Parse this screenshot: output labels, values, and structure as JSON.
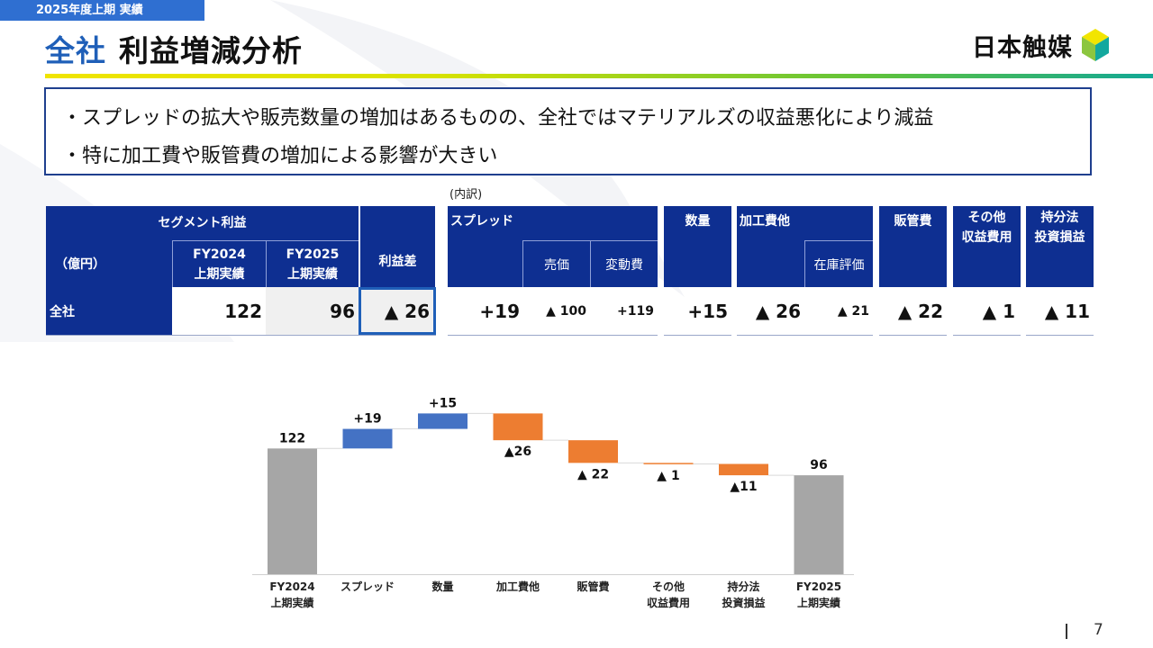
{
  "header": {
    "period_tag": "2025年度上期 実績",
    "title_accent": "全社",
    "title_main": "利益増減分析",
    "logo_text": "日本触媒"
  },
  "summary": {
    "lines": [
      "・スプレッドの拡大や販売数量の増加はあるものの、全社ではマテリアルズの収益悪化により減益",
      "・特に加工費や販管費の増加による影響が大きい"
    ]
  },
  "table": {
    "breakdown_label": "(内訳)",
    "segment_header": "セグメント利益",
    "unit_label": "（億円）",
    "fy2024_line1": "FY2024",
    "fy2024_line2": "上期実績",
    "fy2025_line1": "FY2025",
    "fy2025_line2": "上期実績",
    "diff_header": "利益差",
    "spread_header": "スプレッド",
    "spread_sub1": "売価",
    "spread_sub2": "変動費",
    "volume_header": "数量",
    "processing_header": "加工費他",
    "processing_sub": "在庫評価",
    "sga_header": "販管費",
    "other_line1": "その他",
    "other_line2": "収益費用",
    "equity_line1": "持分法",
    "equity_line2": "投資損益",
    "row": {
      "label": "全社",
      "fy2024": "122",
      "fy2025": "96",
      "diff": "▲ 26",
      "spread": "+19",
      "price": "▲ 100",
      "variable_cost": "+119",
      "volume": "+15",
      "processing": "▲ 26",
      "inventory": "▲ 21",
      "sga": "▲ 22",
      "other": "▲ 1",
      "equity": "▲ 11"
    }
  },
  "chart_data": {
    "type": "bar",
    "subtype": "waterfall",
    "categories": [
      [
        "FY2024",
        "上期実績"
      ],
      [
        "スプレッド"
      ],
      [
        "数量"
      ],
      [
        "加工費他"
      ],
      [
        "販管費"
      ],
      [
        "その他",
        "収益費用"
      ],
      [
        "持分法",
        "投資損益"
      ],
      [
        "FY2025",
        "上期実績"
      ]
    ],
    "values": [
      122,
      19,
      15,
      -26,
      -22,
      -1,
      -11,
      96
    ],
    "kinds": [
      "total",
      "delta",
      "delta",
      "delta",
      "delta",
      "delta",
      "delta",
      "total"
    ],
    "data_labels": [
      "122",
      "+19",
      "+15",
      "▲26",
      "▲ 22",
      "▲ 1",
      "▲11",
      "96"
    ],
    "colors": {
      "total": "#a6a6a6",
      "increase": "#4472c4",
      "decrease": "#ed7d31"
    },
    "ylim": [
      0,
      160
    ],
    "title": "",
    "xlabel": "",
    "ylabel": ""
  },
  "footer": {
    "page_number": "7"
  }
}
